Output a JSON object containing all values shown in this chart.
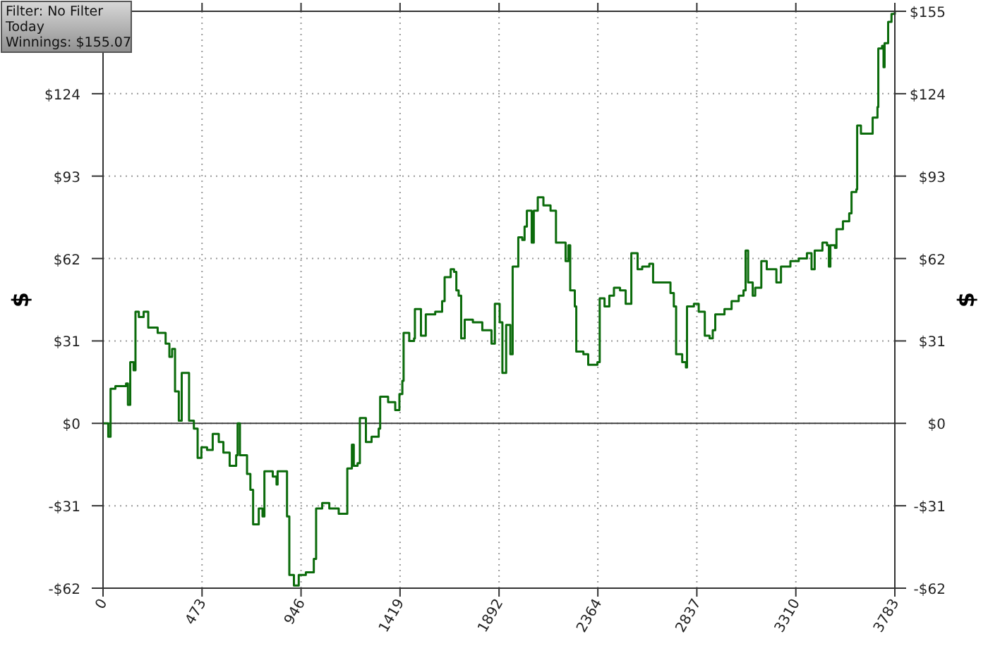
{
  "chart_data": {
    "type": "step",
    "ylabel": "$",
    "y2label": "$",
    "annotations": [
      "Filter: No Filter",
      "Today",
      "Winnings: $155.07"
    ],
    "xlim": [
      0,
      3783
    ],
    "xticks": [
      0,
      473,
      946,
      1419,
      1892,
      2364,
      2837,
      3310,
      3783
    ],
    "ylim": [
      -62,
      155
    ],
    "yticks": [
      {
        "value": -62,
        "label": "-$62"
      },
      {
        "value": -31,
        "label": "-$31"
      },
      {
        "value": 0,
        "label": "$0"
      },
      {
        "value": 31,
        "label": "$31"
      },
      {
        "value": 62,
        "label": "$62"
      },
      {
        "value": 93,
        "label": "$93"
      },
      {
        "value": 124,
        "label": "$124"
      },
      {
        "value": 155,
        "label": null
      }
    ],
    "y2lim": [
      -62,
      155
    ],
    "y2ticks": [
      {
        "value": -62,
        "label": "-$62"
      },
      {
        "value": -31,
        "label": "-$31"
      },
      {
        "value": 0,
        "label": "$0"
      },
      {
        "value": 31,
        "label": "$31"
      },
      {
        "value": 62,
        "label": "$62"
      },
      {
        "value": 93,
        "label": "$93"
      },
      {
        "value": 124,
        "label": "$124"
      },
      {
        "value": 155,
        "label": "$155"
      }
    ],
    "grid": true,
    "marker": "none",
    "line_style": "solid",
    "ref_lines": [
      {
        "axis": "y",
        "value": 0,
        "color": "#404040"
      }
    ],
    "series": [
      {
        "color": "#0b6b0b",
        "x": [
          2,
          25,
          36,
          59,
          110,
          119,
          130,
          146,
          155,
          171,
          194,
          216,
          261,
          299,
          317,
          330,
          344,
          362,
          376,
          403,
          411,
          434,
          452,
          470,
          497,
          524,
          553,
          575,
          605,
          636,
          643,
          654,
          688,
          704,
          717,
          744,
          762,
          771,
          811,
          829,
          834,
          868,
          879,
          890,
          912,
          935,
          969,
          1007,
          1018,
          1047,
          1081,
          1126,
          1160,
          1167,
          1189,
          1198,
          1216,
          1227,
          1256,
          1283,
          1317,
          1324,
          1362,
          1396,
          1416,
          1430,
          1436,
          1463,
          1486,
          1490,
          1508,
          1519,
          1542,
          1587,
          1620,
          1632,
          1661,
          1677,
          1688,
          1699,
          1711,
          1728,
          1767,
          1812,
          1856,
          1872,
          1895,
          1908,
          1926,
          1946,
          1957,
          1984,
          2003,
          2014,
          2025,
          2048,
          2058,
          2077,
          2104,
          2138,
          2164,
          2193,
          2210,
          2223,
          2232,
          2254,
          2261,
          2295,
          2318,
          2362,
          2373,
          2396,
          2419,
          2441,
          2470,
          2497,
          2520,
          2524,
          2542,
          2554,
          2576,
          2610,
          2628,
          2689,
          2711,
          2727,
          2738,
          2767,
          2785,
          2790,
          2823,
          2846,
          2868,
          2875,
          2898,
          2913,
          2925,
          2969,
          3003,
          3037,
          3060,
          3070,
          3082,
          3104,
          3116,
          3145,
          3171,
          3205,
          3217,
          3239,
          3284,
          3324,
          3363,
          3385,
          3400,
          3437,
          3459,
          3468,
          3475,
          3497,
          3504,
          3535,
          3565,
          3576,
          3599,
          3603,
          3621,
          3655,
          3677,
          3700,
          3704,
          3722,
          3729,
          3734,
          3751,
          3767,
          3783
        ],
        "values": [
          0,
          -5,
          13,
          14,
          15,
          7,
          23,
          20,
          42,
          40,
          42,
          36,
          34,
          30,
          25,
          28,
          12,
          1,
          19,
          19,
          1,
          -2,
          -13,
          -9,
          -10,
          -4,
          -7,
          -11,
          -16,
          -12,
          0,
          -12,
          -19,
          -25,
          -38,
          -32,
          -35,
          -18,
          -20,
          -23,
          -18,
          -18,
          -35,
          -57,
          -61,
          -57,
          -56,
          -51,
          -32,
          -30,
          -32,
          -34,
          -34,
          -17,
          -8,
          -16,
          -15,
          2,
          -7,
          -5,
          -2,
          10,
          8,
          5,
          11,
          16,
          34,
          31,
          32,
          43,
          43,
          33,
          41,
          42,
          46,
          55,
          58,
          57,
          50,
          48,
          32,
          39,
          38,
          35,
          30,
          45,
          38,
          19,
          37,
          26,
          59,
          70,
          69,
          74,
          80,
          68,
          80,
          85,
          82,
          80,
          68,
          68,
          61,
          67,
          50,
          44,
          27,
          26,
          22,
          23,
          47,
          44,
          48,
          51,
          50,
          45,
          45,
          64,
          64,
          58,
          59,
          60,
          53,
          53,
          49,
          44,
          26,
          23,
          21,
          44,
          45,
          42,
          42,
          33,
          32,
          35,
          41,
          43,
          46,
          48,
          50,
          65,
          53,
          48,
          51,
          61,
          58,
          58,
          53,
          59,
          61,
          62,
          64,
          58,
          65,
          68,
          67,
          59,
          67,
          66,
          73,
          76,
          79,
          87,
          88,
          112,
          109,
          109,
          115,
          119,
          141,
          142,
          134,
          143,
          151,
          154,
          155
        ]
      }
    ]
  }
}
